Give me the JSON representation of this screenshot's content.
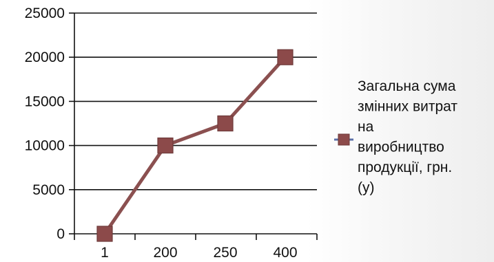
{
  "chart_data": {
    "type": "line",
    "categories": [
      "1",
      "200",
      "250",
      "400"
    ],
    "series": [
      {
        "name": "Загальна сума змінних витрат на виробництво продукції, грн. (у)",
        "values": [
          0,
          10000,
          12500,
          20000
        ],
        "color": "#8c4a4a",
        "line_color": "#8b5050",
        "marker": "square"
      }
    ],
    "y_ticks": [
      "0",
      "5000",
      "10000",
      "15000",
      "20000",
      "25000"
    ],
    "ylim": [
      0,
      25000
    ],
    "title": "",
    "xlabel": "",
    "ylabel": "",
    "grid": "horizontal",
    "legend_position": "right",
    "legend_lines": [
      "Загальна сума",
      "змінних витрат",
      "на",
      "виробництво",
      "продукції, грн.",
      "(у)"
    ]
  }
}
